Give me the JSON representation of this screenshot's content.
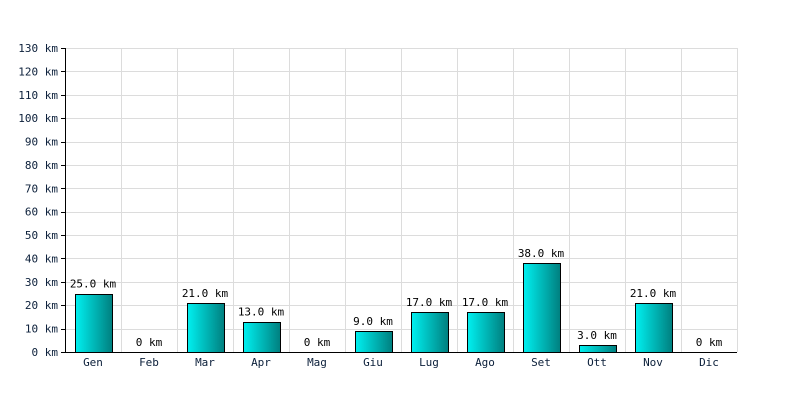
{
  "chart_data": {
    "type": "bar",
    "categories": [
      "Gen",
      "Feb",
      "Mar",
      "Apr",
      "Mag",
      "Giu",
      "Lug",
      "Ago",
      "Set",
      "Ott",
      "Nov",
      "Dic"
    ],
    "values": [
      25,
      0,
      21,
      13,
      0,
      9,
      17,
      17,
      38,
      3,
      21,
      0
    ],
    "data_labels": [
      "25.0 km",
      "0 km",
      "21.0 km",
      "13.0 km",
      "0 km",
      "9.0 km",
      "17.0 km",
      "17.0 km",
      "38.0 km",
      "3.0 km",
      "21.0 km",
      "0 km"
    ],
    "yticks": [
      0,
      10,
      20,
      30,
      40,
      50,
      60,
      70,
      80,
      90,
      100,
      110,
      120,
      130
    ],
    "ytick_labels": [
      "0 km",
      "10 km",
      "20 km",
      "30 km",
      "40 km",
      "50 km",
      "60 km",
      "70 km",
      "80 km",
      "90 km",
      "100 km",
      "110 km",
      "120 km",
      "130 km"
    ],
    "ylim": [
      0,
      130
    ],
    "title": "",
    "xlabel": "",
    "ylabel": "",
    "grid": true,
    "legend": "none",
    "colors": {
      "bar_light": "#00f0f0",
      "bar_dark": "#007f7f",
      "grid": "#dcdcdc",
      "axis": "#000000",
      "tick_text": "#0b1f3a"
    }
  }
}
